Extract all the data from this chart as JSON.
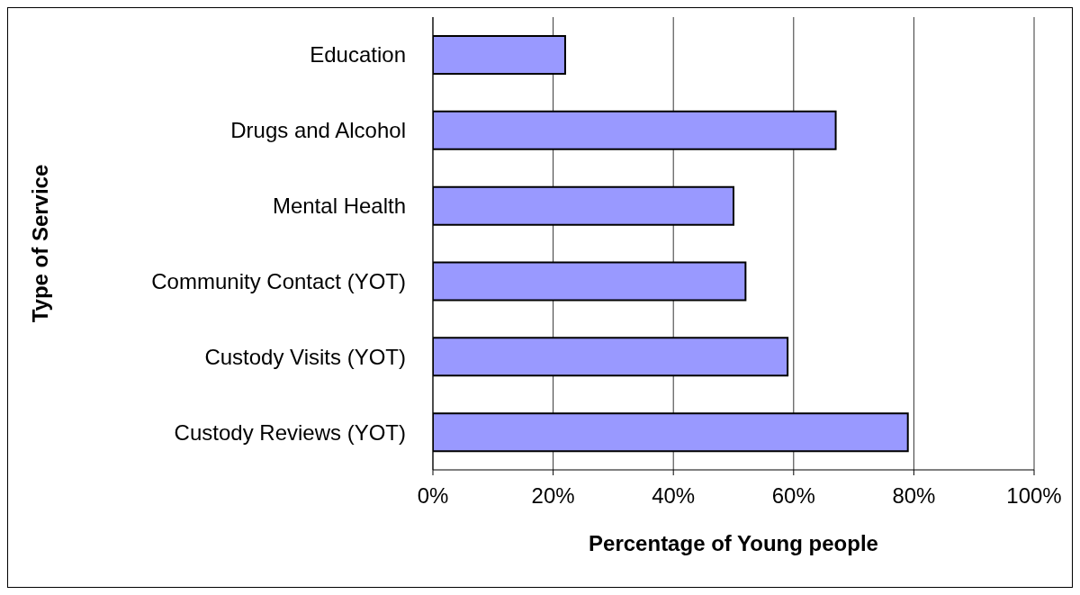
{
  "chart_data": {
    "type": "bar",
    "orientation": "horizontal",
    "xlabel": "Percentage of Young people",
    "ylabel": "Type of Service",
    "categories": [
      "Education",
      "Drugs and Alcohol",
      "Mental Health",
      "Community Contact (YOT)",
      "Custody Visits (YOT)",
      "Custody Reviews (YOT)"
    ],
    "values": [
      22,
      67,
      50,
      52,
      59,
      79
    ],
    "color": "#9999ff",
    "xlim": [
      0,
      100
    ],
    "xticks": [
      {
        "value": 0,
        "label": "0%"
      },
      {
        "value": 20,
        "label": "20%"
      },
      {
        "value": 40,
        "label": "40%"
      },
      {
        "value": 60,
        "label": "60%"
      },
      {
        "value": 80,
        "label": "80%"
      },
      {
        "value": 100,
        "label": "100%"
      }
    ],
    "grid": "x",
    "legend": false
  }
}
